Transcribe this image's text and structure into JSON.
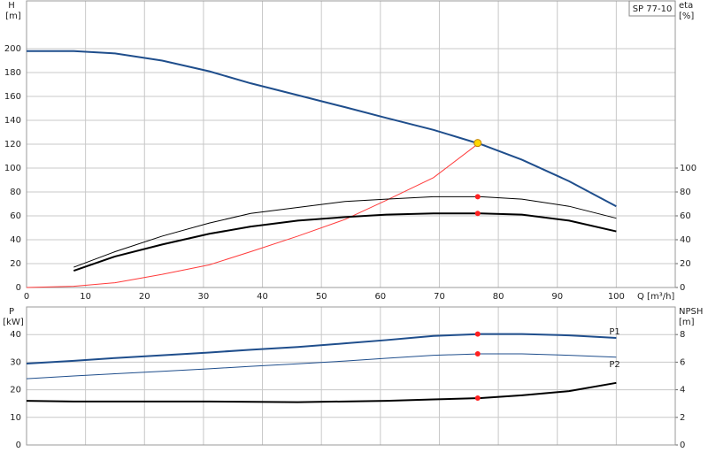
{
  "chart_data": [
    {
      "type": "line",
      "label_box": "SP 77-10",
      "y_label": "H",
      "y_unit": "[m]",
      "y2_label": "eta",
      "y2_unit": "[%]",
      "x_label": "Q [m³/h]",
      "xlim": [
        0,
        110
      ],
      "xticks": [
        0,
        10,
        20,
        30,
        40,
        50,
        60,
        70,
        80,
        90,
        100
      ],
      "show_xtick_labels": true,
      "ylim": [
        0,
        240
      ],
      "yticks": [
        0,
        20,
        40,
        60,
        80,
        100,
        120,
        140,
        160,
        180,
        200
      ],
      "y2lim": [
        0,
        240
      ],
      "y2ticks": [
        0,
        20,
        40,
        60,
        80,
        100
      ],
      "grid": true,
      "series": [
        {
          "color": "#1f4e8c",
          "width": 2,
          "x": [
            0,
            8,
            15,
            23,
            31,
            38,
            46,
            54,
            61,
            69,
            77,
            84,
            92,
            100
          ],
          "values": [
            198,
            198,
            196,
            190,
            181,
            171,
            161,
            151,
            142,
            132,
            120,
            107,
            89,
            68
          ]
        },
        {
          "color": "#ff3b3b",
          "width": 1,
          "x": [
            0,
            8,
            15,
            23,
            31,
            38,
            46,
            54,
            61,
            69,
            77
          ],
          "values": [
            0,
            1,
            4,
            11,
            19,
            30,
            43,
            57,
            73,
            92,
            122
          ]
        },
        {
          "color": "#000000",
          "width": 1,
          "axis": "y2",
          "x": [
            8,
            15,
            23,
            31,
            38,
            46,
            54,
            61,
            69,
            77,
            84,
            92,
            100
          ],
          "values": [
            17,
            30,
            43,
            54,
            62,
            67,
            72,
            74,
            76,
            76,
            74,
            68,
            58
          ]
        },
        {
          "color": "#000000",
          "width": 2,
          "axis": "y2",
          "x": [
            8,
            15,
            23,
            31,
            38,
            46,
            54,
            61,
            69,
            77,
            84,
            92,
            100
          ],
          "values": [
            14,
            26,
            36,
            45,
            51,
            56,
            59,
            61,
            62,
            62,
            61,
            56,
            47
          ]
        },
        {
          "marker": true,
          "color": "#ffd700",
          "x": [
            76.5
          ],
          "values": [
            121
          ]
        },
        {
          "marker": true,
          "color": "#ff2020",
          "axis": "y2",
          "x": [
            76.5,
            76.5
          ],
          "values": [
            76,
            62
          ]
        }
      ]
    },
    {
      "type": "line",
      "y_label": "P",
      "y_unit": "[kW]",
      "y2_label": "NPSH",
      "y2_unit": "[m]",
      "xlim": [
        0,
        110
      ],
      "xticks": [
        0,
        10,
        20,
        30,
        40,
        50,
        60,
        70,
        80,
        90,
        100
      ],
      "show_xtick_labels": false,
      "ylim": [
        0,
        50
      ],
      "yticks": [
        0,
        10,
        20,
        30,
        40
      ],
      "y2lim": [
        0,
        10
      ],
      "y2ticks": [
        0,
        2,
        4,
        6,
        8
      ],
      "grid": true,
      "series": [
        {
          "name": "P1",
          "color": "#1f4e8c",
          "width": 2,
          "x": [
            0,
            8,
            15,
            23,
            31,
            38,
            46,
            54,
            61,
            69,
            77,
            84,
            92,
            100
          ],
          "values": [
            29.5,
            30.5,
            31.5,
            32.5,
            33.5,
            34.5,
            35.5,
            36.8,
            38,
            39.5,
            40.2,
            40.2,
            39.7,
            38.8
          ]
        },
        {
          "name": "P2",
          "color": "#1f4e8c",
          "width": 1,
          "x": [
            0,
            8,
            15,
            23,
            31,
            38,
            46,
            54,
            61,
            69,
            77,
            84,
            92,
            100
          ],
          "values": [
            24,
            25,
            25.8,
            26.7,
            27.6,
            28.5,
            29.4,
            30.4,
            31.4,
            32.5,
            33,
            33,
            32.5,
            31.8
          ]
        },
        {
          "color": "#000000",
          "width": 2,
          "axis": "y2",
          "x": [
            0,
            8,
            31,
            46,
            61,
            69,
            77,
            84,
            92,
            100
          ],
          "values": [
            3.2,
            3.15,
            3.15,
            3.1,
            3.2,
            3.3,
            3.4,
            3.6,
            3.9,
            4.5
          ]
        },
        {
          "marker": true,
          "color": "#ff2020",
          "x": [
            76.5,
            76.5
          ],
          "values": [
            40.2,
            33
          ]
        },
        {
          "marker": true,
          "color": "#ff2020",
          "axis": "y2",
          "x": [
            76.5
          ],
          "values": [
            3.4
          ]
        }
      ]
    }
  ]
}
